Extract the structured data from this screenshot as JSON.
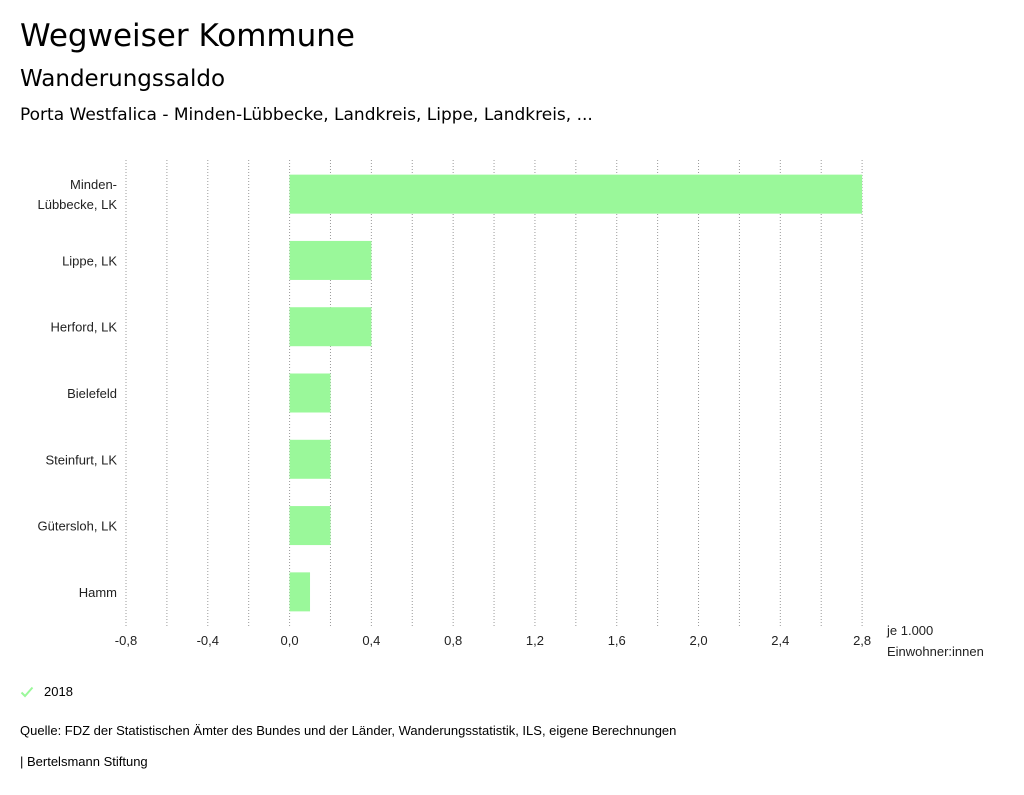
{
  "header": {
    "title": "Wegweiser Kommune",
    "subtitle": "Wanderungssaldo",
    "context": "Porta Westfalica - Minden-Lübbecke, Landkreis, Lippe, Landkreis, ..."
  },
  "chart_data": {
    "type": "bar",
    "orientation": "horizontal",
    "categories": [
      [
        "Minden-",
        "Lübbecke, LK"
      ],
      [
        "Lippe, LK"
      ],
      [
        "Herford, LK"
      ],
      [
        "Bielefeld"
      ],
      [
        "Steinfurt, LK"
      ],
      [
        "Gütersloh, LK"
      ],
      [
        "Hamm"
      ]
    ],
    "series": [
      {
        "name": "2018",
        "color": "#9af89a",
        "values": [
          2.8,
          0.4,
          0.4,
          0.2,
          0.2,
          0.2,
          0.1
        ]
      }
    ],
    "xlim": [
      -0.8,
      3.0
    ],
    "xticks": [
      -0.8,
      -0.4,
      0.0,
      0.4,
      0.8,
      1.2,
      1.6,
      2.0,
      2.4,
      2.8
    ],
    "xtick_labels": [
      "-0,8",
      "-0,4",
      "0,0",
      "0,4",
      "0,8",
      "1,2",
      "1,6",
      "2,0",
      "2,4",
      "2,8"
    ],
    "xlabel": [
      "je 1.000",
      "Einwohner:innen"
    ],
    "grid": true
  },
  "legend": {
    "label": "2018",
    "icon": "check-icon",
    "color": "#9af89a"
  },
  "footer": {
    "source": "Quelle: FDZ der Statistischen Ämter des Bundes und der Länder, Wanderungsstatistik, ILS, eigene Berechnungen",
    "brand": "| Bertelsmann Stiftung"
  }
}
